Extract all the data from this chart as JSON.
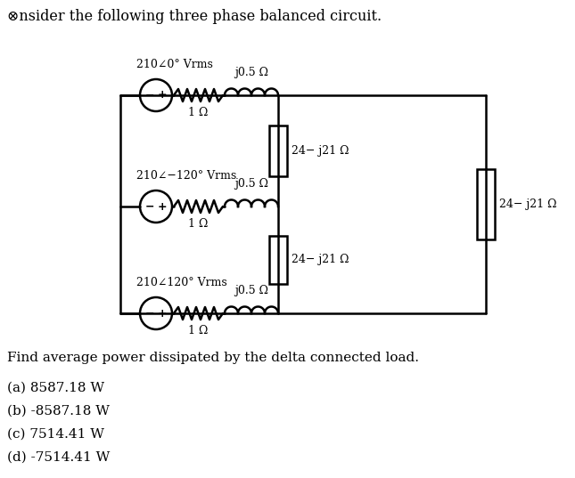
{
  "title": "⊗nsider the following three phase balanced circuit.",
  "sources": [
    {
      "label": "210∠0° Vrms"
    },
    {
      "label": "210∠−120° Vrms"
    },
    {
      "label": "210∠120° Vrms"
    }
  ],
  "resistor_label": "1 Ω",
  "inductor_label": "j0.5 Ω",
  "delta_labels": [
    "24− j21 Ω",
    "24− j21 Ω",
    "24− j21 Ω"
  ],
  "question": "Find average power dissipated by the delta connected load.",
  "options": [
    "(a) 8587.18 W",
    "(b) -8587.18 W",
    "(c) 7514.41 W",
    "(d) -7514.41 W"
  ],
  "bg_color": "#ffffff",
  "fg_color": "#000000"
}
